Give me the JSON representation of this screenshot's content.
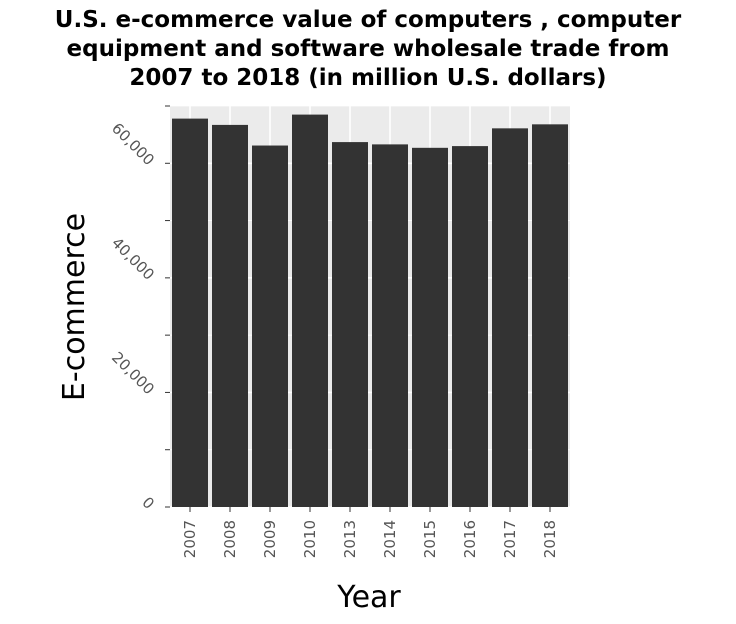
{
  "chart_data": {
    "type": "bar",
    "title_lines": [
      "U.S. e-commerce value of computers , computer",
      "equipment and software wholesale trade from",
      "2007 to 2018 (in million U.S. dollars)"
    ],
    "xlabel": "Year",
    "ylabel": "E-commerce",
    "categories": [
      "2007",
      "2008",
      "2009",
      "2010",
      "2013",
      "2014",
      "2015",
      "2016",
      "2017",
      "2018"
    ],
    "values": [
      67800,
      66700,
      63100,
      68500,
      63700,
      63300,
      62700,
      63000,
      66100,
      66800
    ],
    "ylim": [
      0,
      70000
    ],
    "yticks": [
      0,
      20000,
      40000,
      60000
    ],
    "ytick_labels": [
      "0",
      "20,000",
      "40,000",
      "60,000"
    ],
    "grid": true,
    "colors": {
      "bar": "#333333",
      "panel": "#ebebeb",
      "grid": "#ffffff"
    }
  }
}
